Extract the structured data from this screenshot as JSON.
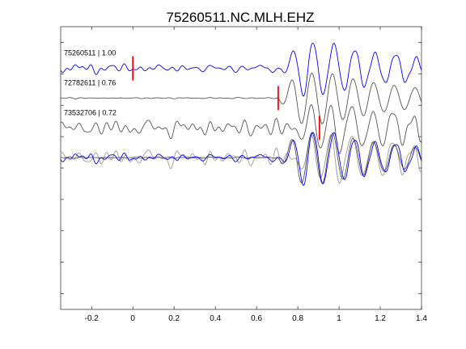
{
  "chart_data": {
    "type": "line",
    "title": "75260511.NC.MLH.EHZ",
    "xlabel": "",
    "ylabel": "",
    "xlim": [
      -0.35,
      1.4
    ],
    "xticks": [
      -0.2,
      0,
      0.2,
      0.4,
      0.6,
      0.8,
      1,
      1.2,
      1.4
    ],
    "xtick_labels": [
      "-0.2",
      "0",
      "0.2",
      "0.4",
      "0.6",
      "0.8",
      "1",
      "1.2",
      "1.4"
    ],
    "y_ticks_unlabeled": 9,
    "grid": false,
    "legend": "none",
    "colors": {
      "reference": "#0000ff",
      "correlated": "#555555",
      "overlay_gray": "#999999",
      "pick": "#ff0000",
      "axes": "#000000"
    },
    "traces": [
      {
        "label": "75260511 | 1.00",
        "id": "75260511",
        "cc": 1.0,
        "color": "#0000ff",
        "pick_time": 0.0,
        "baseline_y": 1,
        "noise_amp": 0.22,
        "signal_onset": 0.72,
        "signal_amp": 1.0,
        "phase": 0.0
      },
      {
        "label": "72782611 | 0.76",
        "id": "72782611",
        "cc": 0.76,
        "color": "#555555",
        "pick_time": 0.705,
        "baseline_y": 3,
        "noise_amp": 0.03,
        "signal_onset": 0.7,
        "signal_amp": 1.0,
        "phase": 0.4
      },
      {
        "label": "73532706 | 0.72",
        "id": "73532706",
        "cc": 0.72,
        "color": "#555555",
        "pick_time": 0.905,
        "baseline_y": 5,
        "noise_amp": 0.35,
        "signal_onset": 0.78,
        "signal_amp": 0.9,
        "phase": 0.9
      }
    ],
    "overlay": {
      "baseline_y": 7,
      "members": [
        "75260511",
        "72782611",
        "73532706"
      ]
    }
  }
}
